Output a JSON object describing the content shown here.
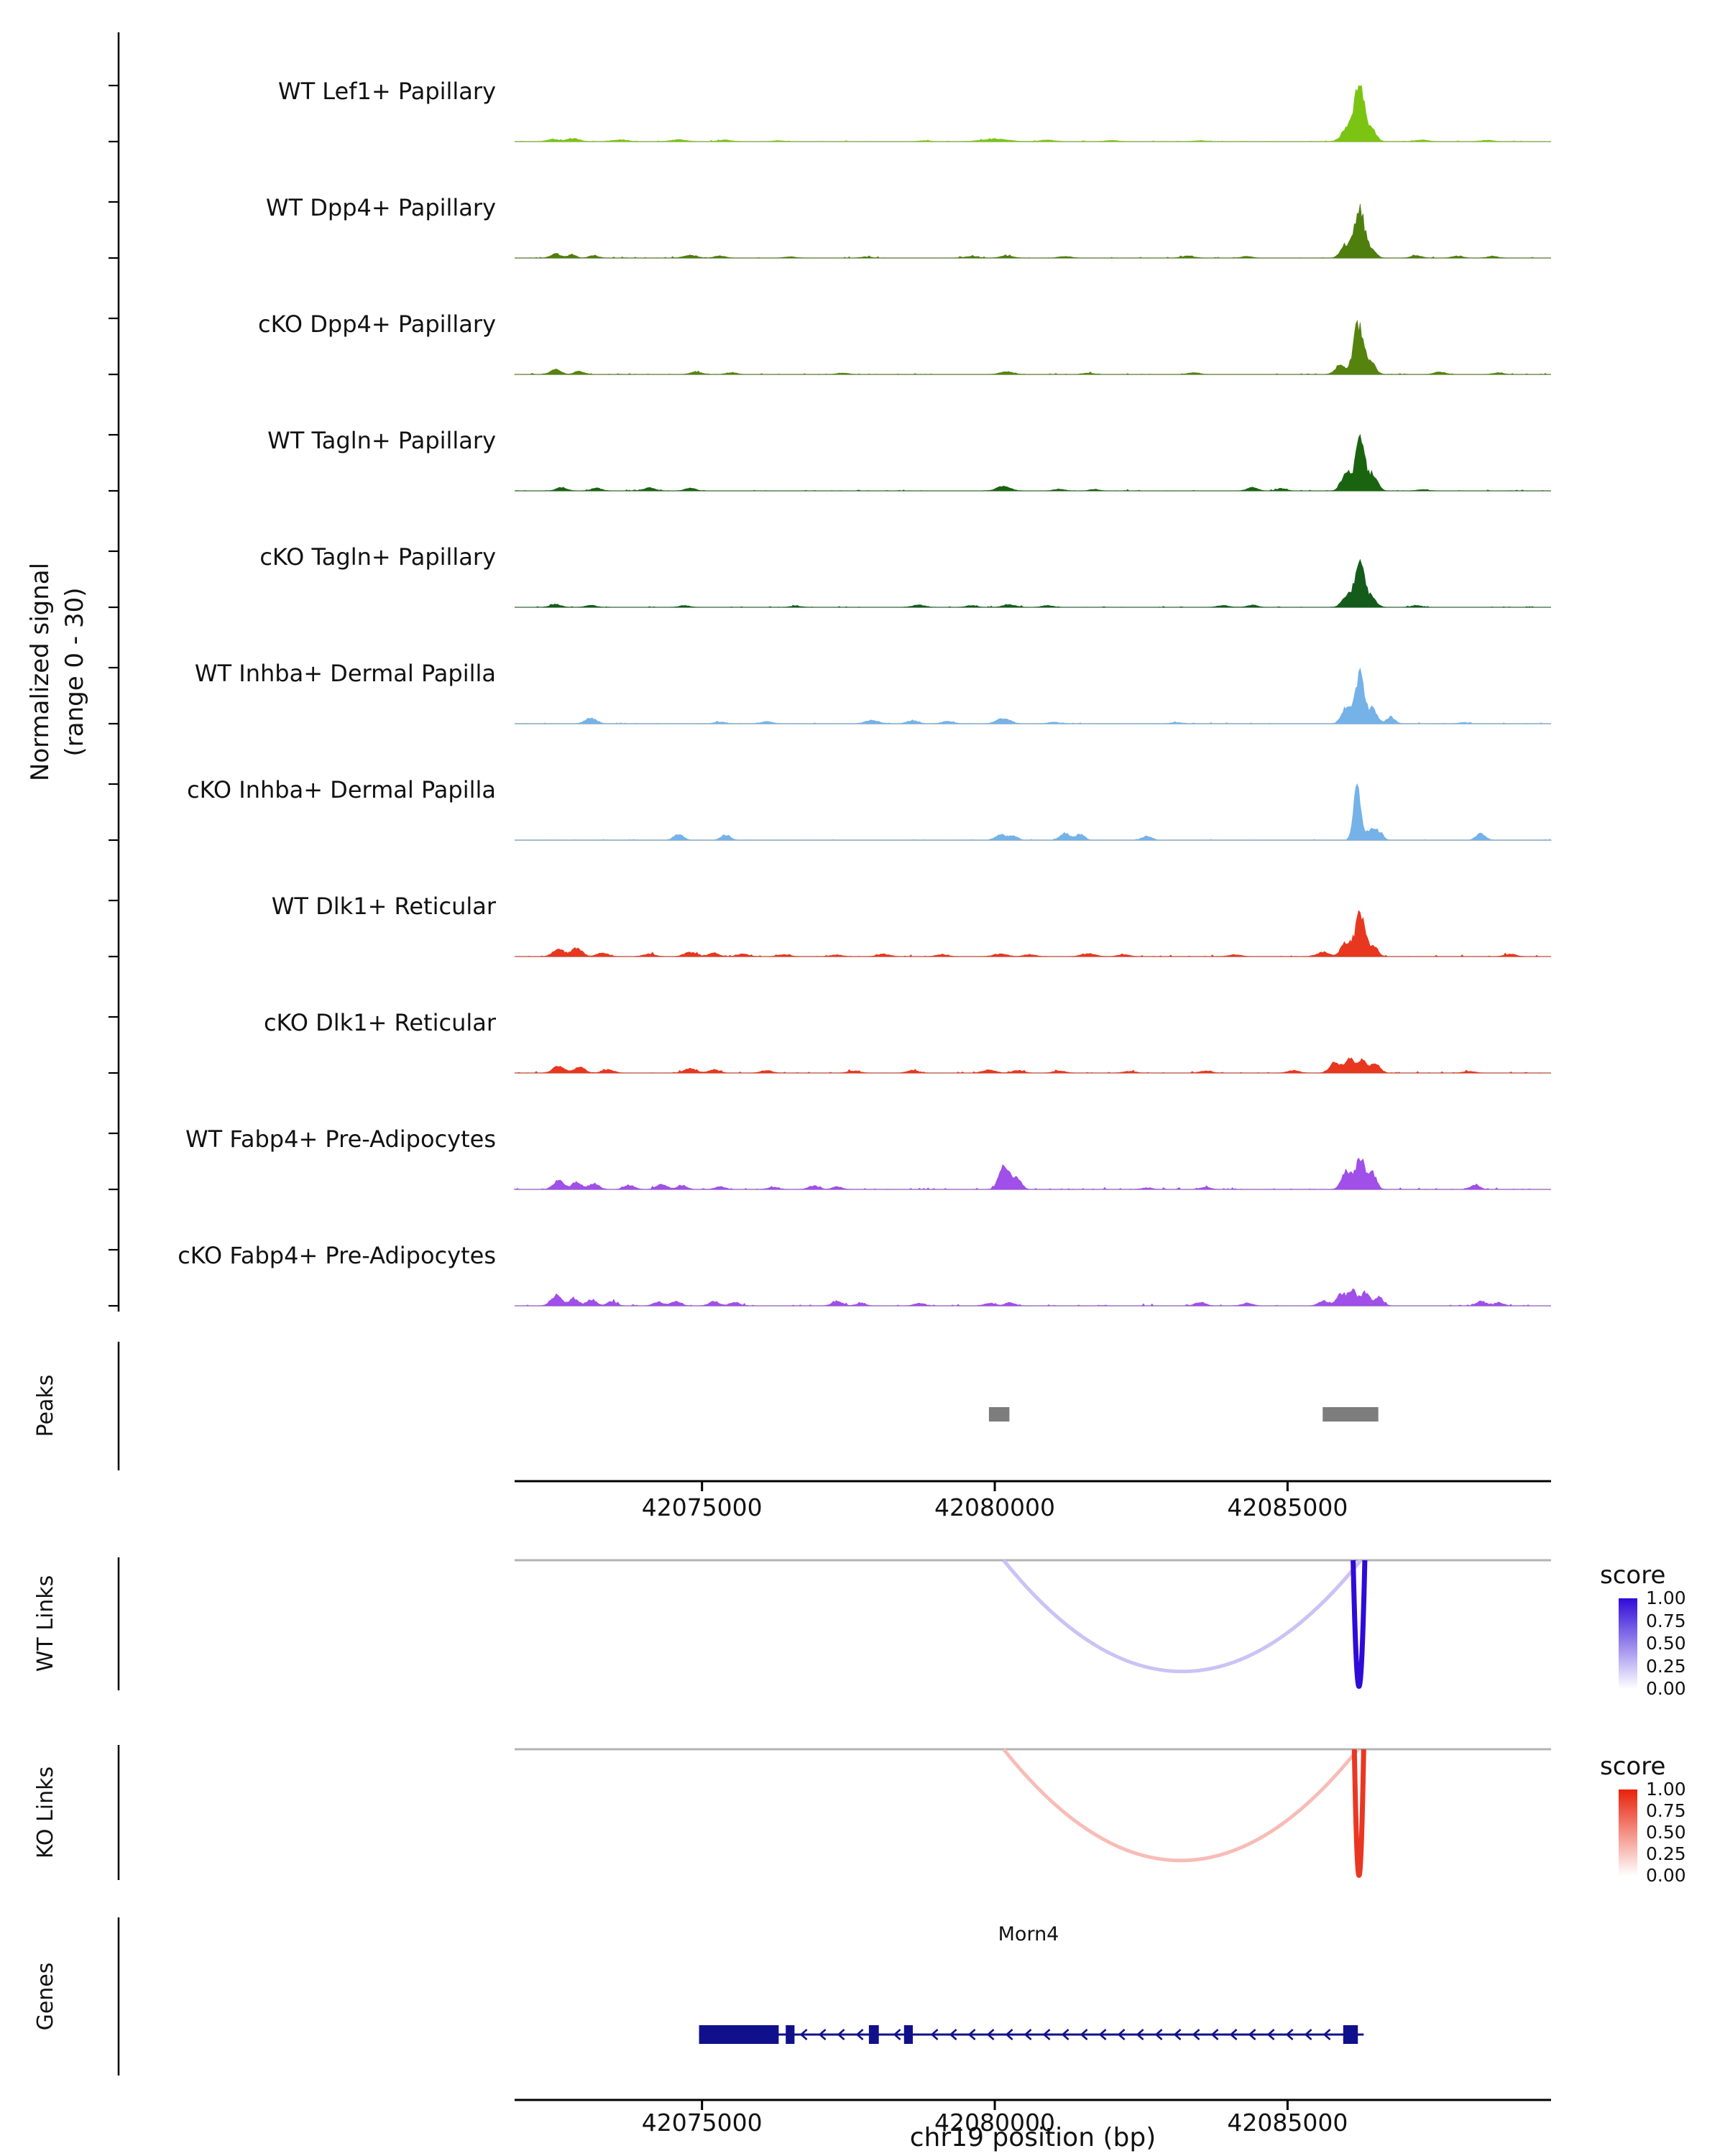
{
  "figure": {
    "y_axis_label": {
      "line1": "Normalized signal",
      "line2": "(range 0 - 30)"
    },
    "x_axis_title": "chr19 position (bp)",
    "panel_labels": {
      "peaks": "Peaks",
      "wt_links": "WT Links",
      "ko_links": "KO Links",
      "genes": "Genes"
    },
    "legend": {
      "title": "score",
      "ticks": [
        "1.00",
        "0.75",
        "0.50",
        "0.25",
        "0.00"
      ]
    }
  },
  "chart_data": {
    "type": "genome-tracks",
    "region": {
      "chrom": "chr19",
      "start": 42071800,
      "end": 42089500
    },
    "x_ticks": [
      42075000,
      42080000,
      42085000
    ],
    "signal_range": [
      0,
      30
    ],
    "tracks": [
      {
        "label": "WT Lef1+ Papillary",
        "color": "#7CC414",
        "noise": 0.3,
        "bumps": [
          [
            42072450,
            1.2,
            220
          ],
          [
            42072800,
            1.5,
            260
          ],
          [
            42073600,
            0.9,
            300
          ],
          [
            42074600,
            1.0,
            300
          ],
          [
            42075400,
            0.8,
            260
          ],
          [
            42076300,
            0.5,
            220
          ],
          [
            42078800,
            0.5,
            220
          ],
          [
            42080000,
            1.4,
            500
          ],
          [
            42080900,
            0.8,
            300
          ],
          [
            42082000,
            0.6,
            260
          ],
          [
            42083500,
            0.5,
            260
          ],
          [
            42086060,
            9,
            260
          ],
          [
            42086230,
            28,
            180
          ],
          [
            42086420,
            7,
            200
          ],
          [
            42087300,
            0.8,
            260
          ],
          [
            42088400,
            0.7,
            260
          ]
        ]
      },
      {
        "label": "WT Dpp4+ Papillary",
        "color": "#4E7E0E",
        "noise": 0.4,
        "bumps": [
          [
            42072500,
            2.2,
            200
          ],
          [
            42072780,
            1.8,
            160
          ],
          [
            42073150,
            1.2,
            200
          ],
          [
            42074800,
            1.4,
            260
          ],
          [
            42075300,
            1.1,
            220
          ],
          [
            42076500,
            0.7,
            220
          ],
          [
            42077800,
            0.6,
            220
          ],
          [
            42079600,
            0.9,
            260
          ],
          [
            42080200,
            1.2,
            260
          ],
          [
            42081200,
            0.8,
            260
          ],
          [
            42083300,
            1.0,
            260
          ],
          [
            42084300,
            0.8,
            220
          ],
          [
            42086000,
            7,
            200
          ],
          [
            42086230,
            26,
            190
          ],
          [
            42086430,
            5,
            180
          ],
          [
            42087200,
            1.2,
            220
          ],
          [
            42087900,
            1.0,
            220
          ],
          [
            42088500,
            0.9,
            220
          ]
        ]
      },
      {
        "label": "cKO Dpp4+ Papillary",
        "color": "#55830E",
        "noise": 0.4,
        "bumps": [
          [
            42072500,
            2.6,
            210
          ],
          [
            42072900,
            1.8,
            180
          ],
          [
            42074900,
            1.3,
            230
          ],
          [
            42075500,
            1.0,
            210
          ],
          [
            42077400,
            0.8,
            220
          ],
          [
            42080200,
            1.5,
            260
          ],
          [
            42081600,
            0.7,
            220
          ],
          [
            42083400,
            0.9,
            230
          ],
          [
            42085900,
            5,
            200
          ],
          [
            42086210,
            27,
            190
          ],
          [
            42086430,
            6,
            180
          ],
          [
            42087600,
            1.2,
            230
          ],
          [
            42088600,
            0.9,
            210
          ]
        ]
      },
      {
        "label": "WT Tagln+ Papillary",
        "color": "#1A6410",
        "noise": 0.35,
        "bumps": [
          [
            42072600,
            1.8,
            210
          ],
          [
            42073200,
            1.4,
            210
          ],
          [
            42074100,
            1.7,
            230
          ],
          [
            42074800,
            1.4,
            210
          ],
          [
            42080150,
            2.4,
            270
          ],
          [
            42081100,
            0.9,
            210
          ],
          [
            42081700,
            0.8,
            190
          ],
          [
            42084400,
            1.8,
            210
          ],
          [
            42084900,
            1.3,
            190
          ],
          [
            42086010,
            10,
            200
          ],
          [
            42086240,
            30,
            170
          ],
          [
            42086460,
            9,
            180
          ],
          [
            42087300,
            0.7,
            210
          ]
        ]
      },
      {
        "label": "cKO Tagln+ Papillary",
        "color": "#135C1C",
        "noise": 0.35,
        "bumps": [
          [
            42072500,
            1.6,
            210
          ],
          [
            42073100,
            1.1,
            210
          ],
          [
            42074700,
            0.9,
            210
          ],
          [
            42076600,
            0.7,
            210
          ],
          [
            42078700,
            1.3,
            230
          ],
          [
            42079600,
            0.9,
            210
          ],
          [
            42080250,
            1.4,
            250
          ],
          [
            42080900,
            1.0,
            210
          ],
          [
            42083900,
            0.9,
            230
          ],
          [
            42084400,
            1.1,
            210
          ],
          [
            42086010,
            6,
            190
          ],
          [
            42086230,
            24,
            190
          ],
          [
            42086440,
            5,
            180
          ],
          [
            42087200,
            0.9,
            210
          ]
        ]
      },
      {
        "label": "WT Inhba+ Dermal Papilla",
        "color": "#74B2E8",
        "noise": 0.4,
        "bumps": [
          [
            42073100,
            2.8,
            230
          ],
          [
            42075300,
            0.9,
            210
          ],
          [
            42076100,
            1.1,
            230
          ],
          [
            42077900,
            1.8,
            270
          ],
          [
            42078600,
            1.6,
            230
          ],
          [
            42079200,
            1.3,
            230
          ],
          [
            42080150,
            2.8,
            270
          ],
          [
            42081000,
            0.8,
            210
          ],
          [
            42083100,
            0.7,
            230
          ],
          [
            42086010,
            9,
            190
          ],
          [
            42086240,
            28,
            170
          ],
          [
            42086460,
            8,
            170
          ],
          [
            42086760,
            3.5,
            170
          ],
          [
            42088000,
            0.6,
            210
          ]
        ]
      },
      {
        "label": "cKO Inhba+ Dermal Papilla",
        "color": "#74B2E8",
        "noise": 0.35,
        "bumps": [
          [
            42074600,
            3.2,
            190
          ],
          [
            42075400,
            2.8,
            190
          ],
          [
            42080100,
            2.8,
            210
          ],
          [
            42080320,
            2.2,
            170
          ],
          [
            42081200,
            3.8,
            190
          ],
          [
            42081460,
            3.2,
            170
          ],
          [
            42082600,
            2.2,
            190
          ],
          [
            42086190,
            30,
            140
          ],
          [
            42086420,
            6,
            160
          ],
          [
            42086570,
            4,
            150
          ],
          [
            42088300,
            3.6,
            180
          ]
        ]
      },
      {
        "label": "WT Dlk1+ Reticular",
        "color": "#E8371F",
        "noise": 0.55,
        "bumps": [
          [
            42072550,
            3.8,
            230
          ],
          [
            42072860,
            4.6,
            210
          ],
          [
            42073300,
            1.8,
            230
          ],
          [
            42074100,
            1.4,
            230
          ],
          [
            42074800,
            2.2,
            250
          ],
          [
            42075200,
            1.8,
            210
          ],
          [
            42075700,
            1.3,
            230
          ],
          [
            42076400,
            1.1,
            230
          ],
          [
            42077300,
            0.9,
            230
          ],
          [
            42078100,
            1.3,
            250
          ],
          [
            42079100,
            1.1,
            230
          ],
          [
            42080100,
            1.4,
            270
          ],
          [
            42080600,
            1.1,
            230
          ],
          [
            42081600,
            1.6,
            270
          ],
          [
            42082200,
            1.1,
            230
          ],
          [
            42084100,
            0.9,
            250
          ],
          [
            42085600,
            2.2,
            250
          ],
          [
            42086010,
            8,
            210
          ],
          [
            42086240,
            22,
            180
          ],
          [
            42086460,
            6,
            180
          ],
          [
            42088800,
            1.3,
            230
          ]
        ]
      },
      {
        "label": "cKO Dlk1+ Reticular",
        "color": "#E8371F",
        "noise": 0.55,
        "bumps": [
          [
            42072550,
            3.6,
            230
          ],
          [
            42072910,
            3.2,
            210
          ],
          [
            42073400,
            1.8,
            230
          ],
          [
            42074800,
            2.3,
            250
          ],
          [
            42075210,
            1.8,
            210
          ],
          [
            42076100,
            1.3,
            230
          ],
          [
            42077600,
            1.1,
            230
          ],
          [
            42078600,
            1.3,
            230
          ],
          [
            42079900,
            1.6,
            250
          ],
          [
            42080400,
            1.3,
            230
          ],
          [
            42081100,
            1.1,
            230
          ],
          [
            42082300,
            0.9,
            230
          ],
          [
            42083600,
            1.1,
            230
          ],
          [
            42085100,
            1.3,
            230
          ],
          [
            42085810,
            5.5,
            210
          ],
          [
            42086060,
            7.5,
            190
          ],
          [
            42086290,
            6.5,
            190
          ],
          [
            42086510,
            4.5,
            180
          ],
          [
            42088100,
            0.9,
            230
          ]
        ]
      },
      {
        "label": "WT Fabp4+ Pre-Adipocytes",
        "color": "#A04FE8",
        "noise": 0.6,
        "bumps": [
          [
            42072550,
            4.6,
            210
          ],
          [
            42072860,
            3.8,
            190
          ],
          [
            42073160,
            3.2,
            190
          ],
          [
            42073760,
            2.3,
            210
          ],
          [
            42074310,
            2.8,
            210
          ],
          [
            42074660,
            2.3,
            190
          ],
          [
            42075310,
            1.4,
            210
          ],
          [
            42076210,
            1.1,
            210
          ],
          [
            42076910,
            1.9,
            210
          ],
          [
            42077310,
            1.4,
            190
          ],
          [
            42080160,
            13,
            200
          ],
          [
            42080380,
            6,
            170
          ],
          [
            42082600,
            0.9,
            210
          ],
          [
            42083600,
            1.1,
            210
          ],
          [
            42086010,
            10,
            190
          ],
          [
            42086240,
            16,
            180
          ],
          [
            42086440,
            9,
            170
          ],
          [
            42088200,
            2.3,
            190
          ]
        ]
      },
      {
        "label": "cKO Fabp4+ Pre-Adipocytes",
        "color": "#A04FE8",
        "noise": 0.6,
        "bumps": [
          [
            42072510,
            5.5,
            210
          ],
          [
            42072810,
            3.8,
            190
          ],
          [
            42073110,
            3.2,
            190
          ],
          [
            42073460,
            2.3,
            190
          ],
          [
            42074260,
            1.9,
            210
          ],
          [
            42074560,
            2.3,
            190
          ],
          [
            42075210,
            2.3,
            210
          ],
          [
            42075560,
            1.9,
            190
          ],
          [
            42077310,
            2.3,
            210
          ],
          [
            42077710,
            1.4,
            190
          ],
          [
            42078710,
            1.3,
            210
          ],
          [
            42079910,
            1.4,
            210
          ],
          [
            42080260,
            1.6,
            210
          ],
          [
            42083510,
            1.9,
            210
          ],
          [
            42084310,
            1.4,
            210
          ],
          [
            42085610,
            2.8,
            190
          ],
          [
            42085910,
            6.5,
            180
          ],
          [
            42086110,
            8,
            170
          ],
          [
            42086330,
            7,
            170
          ],
          [
            42086560,
            4.5,
            170
          ],
          [
            42088310,
            2.4,
            190
          ],
          [
            42088610,
            1.8,
            180
          ]
        ]
      }
    ],
    "peaks": {
      "color": "#7d7d7d",
      "intervals": [
        [
          42079900,
          42080250
        ],
        [
          42085600,
          42086550
        ]
      ]
    },
    "links": {
      "wt": {
        "max_color": "#2F0BD8",
        "links": [
          {
            "start": 42080150,
            "end": 42086250,
            "score": 0.25,
            "depth": 0.9
          },
          {
            "start": 42086120,
            "end": 42086320,
            "score": 1.0,
            "depth": 1.02
          }
        ]
      },
      "ko": {
        "max_color": "#E8210A",
        "links": [
          {
            "start": 42080150,
            "end": 42086200,
            "score": 0.3,
            "depth": 0.9
          },
          {
            "start": 42086140,
            "end": 42086300,
            "score": 0.9,
            "depth": 1.02
          }
        ]
      }
    },
    "genes": [
      {
        "name": "Morn4",
        "strand": "-",
        "start": 42074950,
        "end": 42086300,
        "color": "#10108C",
        "exons": [
          [
            42074950,
            42076310
          ],
          [
            42076430,
            42076580
          ],
          [
            42077850,
            42078020
          ],
          [
            42078450,
            42078600
          ],
          [
            42085950,
            42086200
          ]
        ]
      }
    ]
  }
}
